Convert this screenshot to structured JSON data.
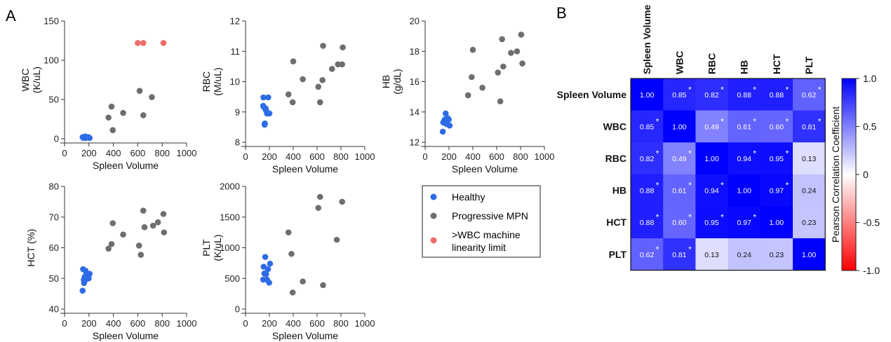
{
  "panels": {
    "a_label": "A",
    "b_label": "B"
  },
  "legend": {
    "items": [
      {
        "label": "Healthy",
        "color": "#2e6be6"
      },
      {
        "label": "Progressive MPN",
        "color": "#6e6e6e"
      },
      {
        "label": ">WBC machine",
        "label2": "linearity limit",
        "color": "#f26b6b"
      }
    ]
  },
  "colors": {
    "healthy": "#2e6be6",
    "mpn": "#6e6e6e",
    "limit": "#f26b6b",
    "heat_pos": "#0000ff",
    "heat_neg": "#ff0000"
  },
  "chart_data": [
    {
      "type": "scatter",
      "xlabel": "Spleen Volume",
      "ylabel": "WBC",
      "ylabel2": "(K/uL)",
      "xlim": [
        0,
        1000
      ],
      "ylim": [
        0,
        150
      ],
      "xticks": [
        0,
        200,
        400,
        600,
        800,
        1000
      ],
      "yticks": [
        0,
        50,
        100,
        150
      ],
      "series": [
        {
          "name": "Healthy",
          "x": [
            148,
            155,
            160,
            168,
            175,
            185,
            195,
            205,
            165,
            178
          ],
          "y": [
            2,
            1,
            2,
            3,
            1,
            2,
            2,
            1,
            1,
            2
          ]
        },
        {
          "name": "Progressive MPN",
          "x": [
            360,
            385,
            395,
            480,
            615,
            645,
            715
          ],
          "y": [
            27,
            41,
            11,
            33,
            61,
            30,
            53
          ]
        },
        {
          "name": ">WBC machine linearity limit",
          "x": [
            600,
            645,
            810
          ],
          "y": [
            122,
            122,
            122
          ]
        }
      ]
    },
    {
      "type": "scatter",
      "xlabel": "Spleen Volume",
      "ylabel": "RBC",
      "ylabel2": "(M/uL)",
      "xlim": [
        0,
        1000
      ],
      "ylim": [
        8,
        12
      ],
      "xticks": [
        0,
        200,
        400,
        600,
        800,
        1000
      ],
      "yticks": [
        8,
        9,
        10,
        11,
        12
      ],
      "series": [
        {
          "name": "Healthy",
          "x": [
            150,
            155,
            162,
            168,
            172,
            180,
            190,
            200,
            160,
            148
          ],
          "y": [
            9.48,
            9.15,
            8.62,
            9.12,
            9.05,
            8.95,
            9.48,
            8.95,
            8.58,
            9.2
          ]
        },
        {
          "name": "Progressive MPN",
          "x": [
            360,
            395,
            400,
            480,
            610,
            625,
            650,
            645,
            725,
            775,
            810,
            815
          ],
          "y": [
            9.58,
            9.32,
            10.67,
            10.08,
            9.83,
            9.32,
            11.18,
            10.05,
            10.42,
            10.57,
            10.57,
            11.13
          ]
        }
      ]
    },
    {
      "type": "scatter",
      "xlabel": "Spleen Volume",
      "ylabel": "HB",
      "ylabel2": "(g/dL)",
      "xlim": [
        0,
        1000
      ],
      "ylim": [
        12,
        20
      ],
      "xticks": [
        0,
        200,
        400,
        600,
        800,
        1000
      ],
      "yticks": [
        12,
        14,
        16,
        18,
        20
      ],
      "series": [
        {
          "name": "Healthy",
          "x": [
            148,
            152,
            158,
            165,
            172,
            180,
            188,
            198,
            205,
            160
          ],
          "y": [
            12.7,
            13.3,
            13.4,
            13.5,
            13.9,
            13.2,
            13.6,
            13.5,
            13.1,
            13.3
          ]
        },
        {
          "name": "Progressive MPN",
          "x": [
            360,
            390,
            400,
            480,
            610,
            630,
            645,
            655,
            720,
            770,
            805,
            815
          ],
          "y": [
            15.1,
            16.3,
            18.1,
            15.6,
            16.6,
            14.7,
            18.8,
            17.0,
            17.9,
            18.0,
            19.1,
            17.2
          ]
        }
      ]
    },
    {
      "type": "scatter",
      "xlabel": "Spleen Volume",
      "ylabel": "HCT (%)",
      "xlim": [
        0,
        1000
      ],
      "ylim": [
        40,
        80
      ],
      "xticks": [
        0,
        200,
        400,
        600,
        800,
        1000
      ],
      "yticks": [
        40,
        50,
        60,
        70,
        80
      ],
      "series": [
        {
          "name": "Healthy",
          "x": [
            148,
            152,
            158,
            165,
            172,
            180,
            188,
            198,
            205,
            160,
            170
          ],
          "y": [
            46.0,
            53.0,
            49.5,
            50.5,
            52.5,
            51.5,
            51.0,
            50.0,
            51.5,
            48.5,
            49.5
          ]
        },
        {
          "name": "Progressive MPN",
          "x": [
            360,
            385,
            395,
            480,
            610,
            625,
            645,
            655,
            725,
            765,
            810,
            815
          ],
          "y": [
            59.7,
            61.2,
            68.0,
            64.3,
            60.7,
            57.7,
            72.1,
            66.7,
            67.2,
            68.3,
            71.0,
            65.0
          ]
        }
      ]
    },
    {
      "type": "scatter",
      "xlabel": "Spleen Volume",
      "ylabel": "PLT",
      "ylabel2": "(K/uL)",
      "xlim": [
        0,
        1000
      ],
      "ylim": [
        0,
        2000
      ],
      "xticks": [
        0,
        200,
        400,
        600,
        800,
        1000
      ],
      "yticks": [
        0,
        500,
        1000,
        1500,
        2000
      ],
      "series": [
        {
          "name": "Healthy",
          "x": [
            148,
            152,
            158,
            165,
            172,
            180,
            188,
            198,
            205,
            160
          ],
          "y": [
            480,
            690,
            580,
            850,
            570,
            480,
            650,
            430,
            740,
            580
          ]
        },
        {
          "name": "Progressive MPN",
          "x": [
            360,
            385,
            395,
            480,
            610,
            625,
            650,
            765,
            810
          ],
          "y": [
            1250,
            900,
            270,
            450,
            1650,
            1830,
            390,
            1130,
            1750
          ]
        }
      ]
    },
    {
      "type": "heatmap",
      "rows": [
        "Spleen Volume",
        "WBC",
        "RBC",
        "HB",
        "HCT",
        "PLT"
      ],
      "cols": [
        "Spleen Volume",
        "WBC",
        "RBC",
        "HB",
        "HCT",
        "PLT"
      ],
      "values": [
        [
          1.0,
          0.85,
          0.82,
          0.88,
          0.88,
          0.62
        ],
        [
          0.85,
          1.0,
          0.49,
          0.61,
          0.6,
          0.81
        ],
        [
          0.82,
          0.49,
          1.0,
          0.94,
          0.95,
          0.13
        ],
        [
          0.88,
          0.61,
          0.94,
          1.0,
          0.97,
          0.24
        ],
        [
          0.88,
          0.6,
          0.95,
          0.97,
          1.0,
          0.23
        ],
        [
          0.62,
          0.81,
          0.13,
          0.24,
          0.23,
          1.0
        ]
      ],
      "labels": [
        [
          "1.00",
          "0.85",
          "0.82",
          "0.88",
          "0.88",
          "0.62"
        ],
        [
          "0.85",
          "1.00",
          "0.49",
          "0.61",
          "0.60",
          "0.81"
        ],
        [
          "0.82",
          "0.49",
          "1.00",
          "0.94",
          "0.95",
          "0.13"
        ],
        [
          "0.88",
          "0.61",
          "0.94",
          "1.00",
          "0.97",
          "0.24"
        ],
        [
          "0.88",
          "0.60",
          "0.95",
          "0.97",
          "1.00",
          "0.23"
        ],
        [
          "0.62",
          "0.81",
          "0.13",
          "0.24",
          "0.23",
          "1.00"
        ]
      ],
      "significant": [
        [
          false,
          true,
          true,
          true,
          true,
          true
        ],
        [
          true,
          false,
          true,
          true,
          true,
          true
        ],
        [
          true,
          true,
          false,
          true,
          true,
          false
        ],
        [
          true,
          true,
          true,
          false,
          true,
          false
        ],
        [
          true,
          true,
          true,
          true,
          false,
          false
        ],
        [
          true,
          true,
          false,
          false,
          false,
          false
        ]
      ],
      "star": "*",
      "colorbar": {
        "label": "Pearson Correlation Coefficient",
        "ticks": [
          1.0,
          0.5,
          0,
          -0.5,
          -1.0
        ],
        "tick_labels": [
          "1.0",
          "0.5",
          "0",
          "-0.5",
          "-1.0"
        ],
        "range": [
          -1,
          1
        ]
      }
    }
  ]
}
